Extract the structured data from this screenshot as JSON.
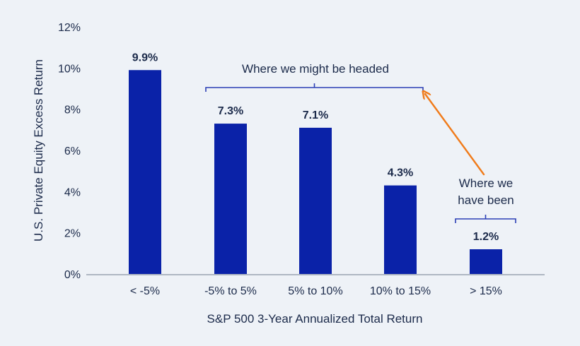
{
  "chart_data": {
    "type": "bar",
    "categories": [
      "< -5%",
      "-5% to 5%",
      "5% to 10%",
      "10% to 15%",
      "> 15%"
    ],
    "values": [
      9.9,
      7.3,
      7.1,
      4.3,
      1.2
    ],
    "data_labels": [
      "9.9%",
      "7.3%",
      "7.1%",
      "4.3%",
      "1.2%"
    ],
    "xlabel": "S&P 500 3-Year Annualized Total Return",
    "ylabel": "U.S. Private Equity Excess Return",
    "ylim": [
      0,
      12
    ],
    "yticks": [
      0,
      2,
      4,
      6,
      8,
      10,
      12
    ],
    "ytick_labels": [
      "0%",
      "2%",
      "4%",
      "6%",
      "8%",
      "10%",
      "12%"
    ],
    "grid": false,
    "legend": "none",
    "annotations": {
      "future_text": "Where we might be headed",
      "future_span": [
        "-5% to 5%",
        "10% to 15%"
      ],
      "past_text_line1": "Where we",
      "past_text_line2": "have been",
      "past_span": [
        "> 15%"
      ]
    },
    "colors": {
      "bar": "#0a22a8",
      "bracket": "#2b3fb5",
      "arrow": "#f07b1a",
      "axis": "#9aa3b2",
      "text": "#1b2a4a",
      "background": "#eef2f7"
    }
  }
}
